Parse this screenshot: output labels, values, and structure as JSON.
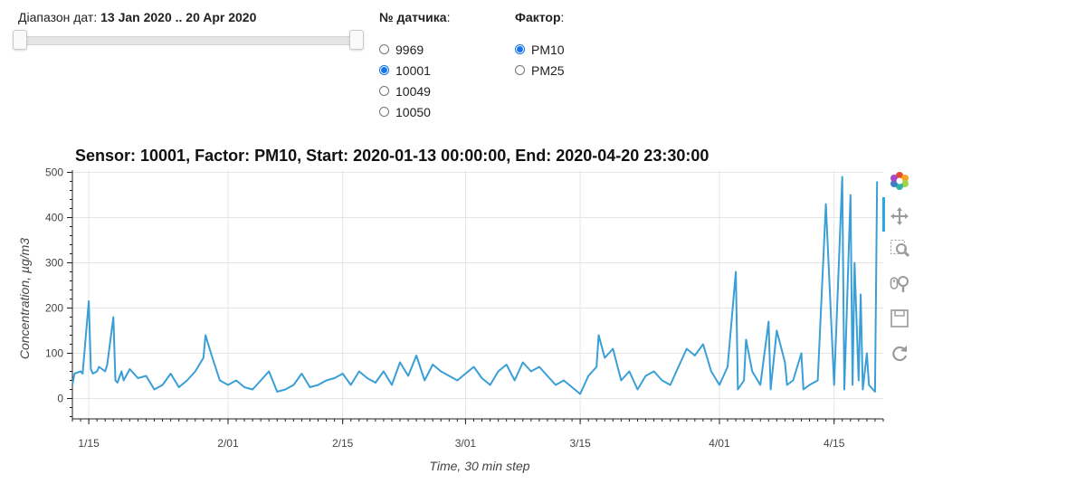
{
  "controls": {
    "date_range": {
      "label": "Діапазон дат: ",
      "value": "13 Jan 2020 .. 20 Apr 2020"
    },
    "sensor_group": {
      "title": "№ датчика",
      "options": [
        "9969",
        "10001",
        "10049",
        "10050"
      ],
      "selected": "10001"
    },
    "factor_group": {
      "title": "Фактор",
      "options": [
        "PM10",
        "PM25"
      ],
      "selected": "PM10"
    }
  },
  "toolbar": {
    "icons": [
      "bokeh-logo-icon",
      "pan-icon",
      "box-zoom-icon",
      "wheel-zoom-icon",
      "save-icon",
      "reset-icon"
    ]
  },
  "chart_data": {
    "type": "line",
    "title": "Sensor: 10001, Factor: PM10, Start: 2020-01-13 00:00:00, End: 2020-04-20 23:30:00",
    "xlabel": "Time, 30 min step",
    "ylabel": "Concentration, µg/m3",
    "x_ticks": [
      "1/15",
      "2/01",
      "2/15",
      "3/01",
      "3/15",
      "4/01",
      "4/15"
    ],
    "y_ticks": [
      0,
      100,
      200,
      300,
      400,
      500
    ],
    "xlim": [
      "2020-01-13",
      "2020-04-20"
    ],
    "ylim": [
      -45,
      505
    ],
    "grid": true,
    "series": [
      {
        "color": "#3a9fd6",
        "x": [
          "2020-01-13",
          "2020-01-13",
          "2020-01-14",
          "2020-01-14",
          "2020-01-15",
          "2020-01-15",
          "2020-01-15",
          "2020-01-16",
          "2020-01-16",
          "2020-01-17",
          "2020-01-17",
          "2020-01-18",
          "2020-01-18",
          "2020-01-18",
          "2020-01-19",
          "2020-01-19",
          "2020-01-20",
          "2020-01-21",
          "2020-01-22",
          "2020-01-23",
          "2020-01-24",
          "2020-01-25",
          "2020-01-26",
          "2020-01-27",
          "2020-01-28",
          "2020-01-29",
          "2020-01-29",
          "2020-01-30",
          "2020-01-31",
          "2020-02-01",
          "2020-02-02",
          "2020-02-03",
          "2020-02-04",
          "2020-02-05",
          "2020-02-06",
          "2020-02-07",
          "2020-02-08",
          "2020-02-09",
          "2020-02-10",
          "2020-02-11",
          "2020-02-12",
          "2020-02-13",
          "2020-02-14",
          "2020-02-15",
          "2020-02-16",
          "2020-02-17",
          "2020-02-18",
          "2020-02-19",
          "2020-02-20",
          "2020-02-21",
          "2020-02-22",
          "2020-02-23",
          "2020-02-24",
          "2020-02-25",
          "2020-02-26",
          "2020-02-27",
          "2020-02-28",
          "2020-02-29",
          "2020-03-01",
          "2020-03-02",
          "2020-03-03",
          "2020-03-04",
          "2020-03-05",
          "2020-03-06",
          "2020-03-07",
          "2020-03-08",
          "2020-03-09",
          "2020-03-10",
          "2020-03-11",
          "2020-03-12",
          "2020-03-13",
          "2020-03-14",
          "2020-03-15",
          "2020-03-16",
          "2020-03-17",
          "2020-03-17",
          "2020-03-18",
          "2020-03-19",
          "2020-03-20",
          "2020-03-21",
          "2020-03-22",
          "2020-03-23",
          "2020-03-24",
          "2020-03-25",
          "2020-03-26",
          "2020-03-27",
          "2020-03-28",
          "2020-03-29",
          "2020-03-30",
          "2020-03-31",
          "2020-04-01",
          "2020-04-02",
          "2020-04-03",
          "2020-04-03",
          "2020-04-04",
          "2020-04-04",
          "2020-04-05",
          "2020-04-06",
          "2020-04-07",
          "2020-04-07",
          "2020-04-08",
          "2020-04-09",
          "2020-04-09",
          "2020-04-10",
          "2020-04-11",
          "2020-04-11",
          "2020-04-12",
          "2020-04-13",
          "2020-04-14",
          "2020-04-15",
          "2020-04-16",
          "2020-04-16",
          "2020-04-17",
          "2020-04-17",
          "2020-04-17",
          "2020-04-18",
          "2020-04-18",
          "2020-04-18",
          "2020-04-19",
          "2020-04-19",
          "2020-04-20",
          "2020-04-20"
        ],
        "y": [
          30,
          55,
          60,
          55,
          215,
          65,
          55,
          60,
          70,
          60,
          75,
          180,
          40,
          35,
          60,
          40,
          65,
          45,
          50,
          20,
          30,
          55,
          25,
          40,
          60,
          90,
          140,
          95,
          40,
          30,
          40,
          25,
          20,
          40,
          60,
          15,
          20,
          30,
          55,
          25,
          30,
          40,
          45,
          55,
          30,
          60,
          45,
          35,
          60,
          30,
          80,
          50,
          95,
          40,
          75,
          60,
          50,
          40,
          55,
          70,
          45,
          30,
          60,
          75,
          40,
          80,
          60,
          70,
          50,
          30,
          40,
          25,
          10,
          50,
          70,
          140,
          90,
          110,
          40,
          60,
          20,
          50,
          60,
          40,
          30,
          70,
          110,
          95,
          120,
          60,
          30,
          70,
          280,
          20,
          40,
          130,
          60,
          30,
          170,
          20,
          150,
          80,
          30,
          40,
          100,
          20,
          30,
          40,
          430,
          30,
          490,
          20,
          450,
          30,
          300,
          40,
          230,
          20,
          100,
          30,
          15,
          480
        ]
      }
    ]
  }
}
